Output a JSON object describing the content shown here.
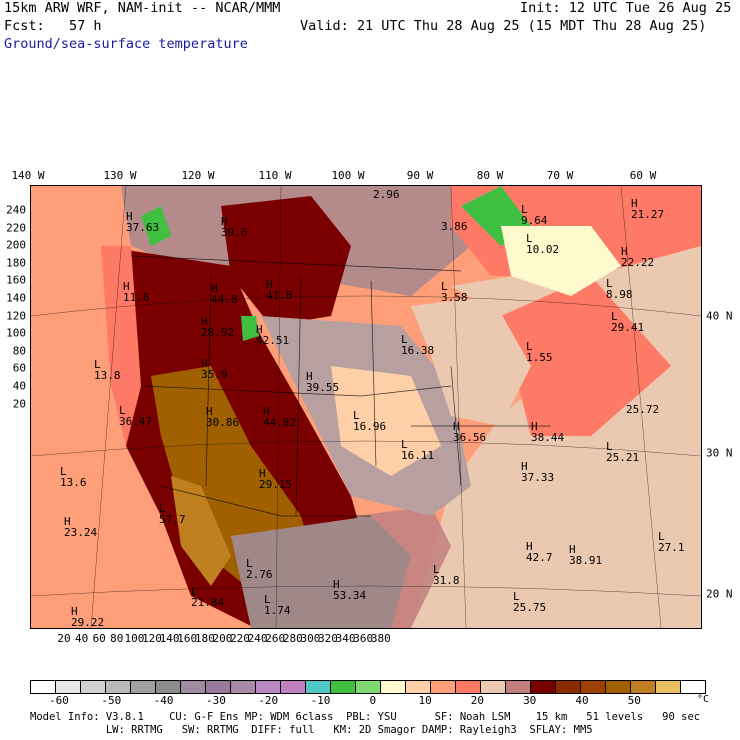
{
  "header": {
    "model": "15km ARW WRF, NAM-init -- NCAR/MMM",
    "init": "Init: 12 UTC Tue 26 Aug 25",
    "fcst": "Fcst:   57 h",
    "valid": "Valid: 21 UTC Thu 28 Aug 25 (15 MDT Thu 28 Aug 25)",
    "field": "Ground/sea-surface temperature"
  },
  "lon_labels": [
    "140 W",
    "130 W",
    "120 W",
    "110 W",
    "100 W",
    "90 W",
    "80 W",
    "70 W",
    "60 W"
  ],
  "lat_labels": [
    "40 N",
    "30 N",
    "20 N"
  ],
  "x_ticks": [
    "20",
    "40",
    "60",
    "80",
    "100",
    "120",
    "140",
    "160",
    "180",
    "200",
    "220",
    "240",
    "260",
    "280",
    "300",
    "320",
    "340",
    "360",
    "380"
  ],
  "y_ticks": [
    "240",
    "220",
    "200",
    "180",
    "160",
    "140",
    "120",
    "100",
    "80",
    "60",
    "40",
    "20"
  ],
  "map_labels": [
    {
      "t": "2.96"
    },
    {
      "t": "H\n37.63"
    },
    {
      "t": "H\n39.6"
    },
    {
      "t": "3.86"
    },
    {
      "t": "L\n9.64"
    },
    {
      "t": "H\n21.27"
    },
    {
      "t": "L\n10.02"
    },
    {
      "t": "H\n22.22"
    },
    {
      "t": "H\n41.8"
    },
    {
      "t": "H\n44.8"
    },
    {
      "t": "L\n3.58"
    },
    {
      "t": "L\n8.98"
    },
    {
      "t": "H\n11.6"
    },
    {
      "t": "H\n28.92"
    },
    {
      "t": "H\n42.51"
    },
    {
      "t": "L\n29.41"
    },
    {
      "t": "L\n16.38"
    },
    {
      "t": "L\n13.8"
    },
    {
      "t": "H\n35.9"
    },
    {
      "t": "H\n39.55"
    },
    {
      "t": "L\n1.55"
    },
    {
      "t": "L\n36.47"
    },
    {
      "t": "H\n30.86"
    },
    {
      "t": "H\n44.82"
    },
    {
      "t": "L\n16.96"
    },
    {
      "t": "H\n36.56"
    },
    {
      "t": "H\n38.44"
    },
    {
      "t": "25.72"
    },
    {
      "t": "L\n16.11"
    },
    {
      "t": "L\n25.21"
    },
    {
      "t": "L\n13.6"
    },
    {
      "t": "H\n29.15"
    },
    {
      "t": "H\n37.33"
    },
    {
      "t": "H\n23.24"
    },
    {
      "t": "L\n57.7"
    },
    {
      "t": "H\n42.7"
    },
    {
      "t": "H\n38.91"
    },
    {
      "t": "L\n27.1"
    },
    {
      "t": "L\n31.8"
    },
    {
      "t": "L\n2.76"
    },
    {
      "t": "H\n53.34"
    },
    {
      "t": "L\n21.84"
    },
    {
      "t": "L\n25.75"
    },
    {
      "t": "L\n1.74"
    },
    {
      "t": "H\n29.22"
    }
  ],
  "colorbar": {
    "colors": [
      "#ffffff",
      "#e8e8e8",
      "#d2d2d2",
      "#b9b9b9",
      "#a0a0a0",
      "#8c8c8c",
      "#a08ca0",
      "#9a7a9a",
      "#aa88aa",
      "#b888c0",
      "#c080c0",
      "#50c8c8",
      "#40c040",
      "#80d870",
      "#fffacd",
      "#ffcfa8",
      "#ff9f7a",
      "#ff7a66",
      "#eac9b0",
      "#c08080",
      "#7a0000",
      "#8c2a00",
      "#a04000",
      "#a06000",
      "#c08020",
      "#e8c060",
      "#ffffff"
    ],
    "ticks": [
      "-60",
      "-50",
      "-40",
      "-30",
      "-20",
      "-10",
      "0",
      "10",
      "20",
      "30",
      "40",
      "50"
    ],
    "unit": "°C"
  },
  "footer": {
    "line1": "Model Info: V3.8.1    CU: G-F Ens MP: WDM 6class  PBL: YSU      SF: Noah LSM    15 km   51 levels   90 sec",
    "line2": "            LW: RRTMG   SW: RRTMG  DIFF: full   KM: 2D Smagor DAMP: Rayleigh3  SFLAY: MM5"
  }
}
